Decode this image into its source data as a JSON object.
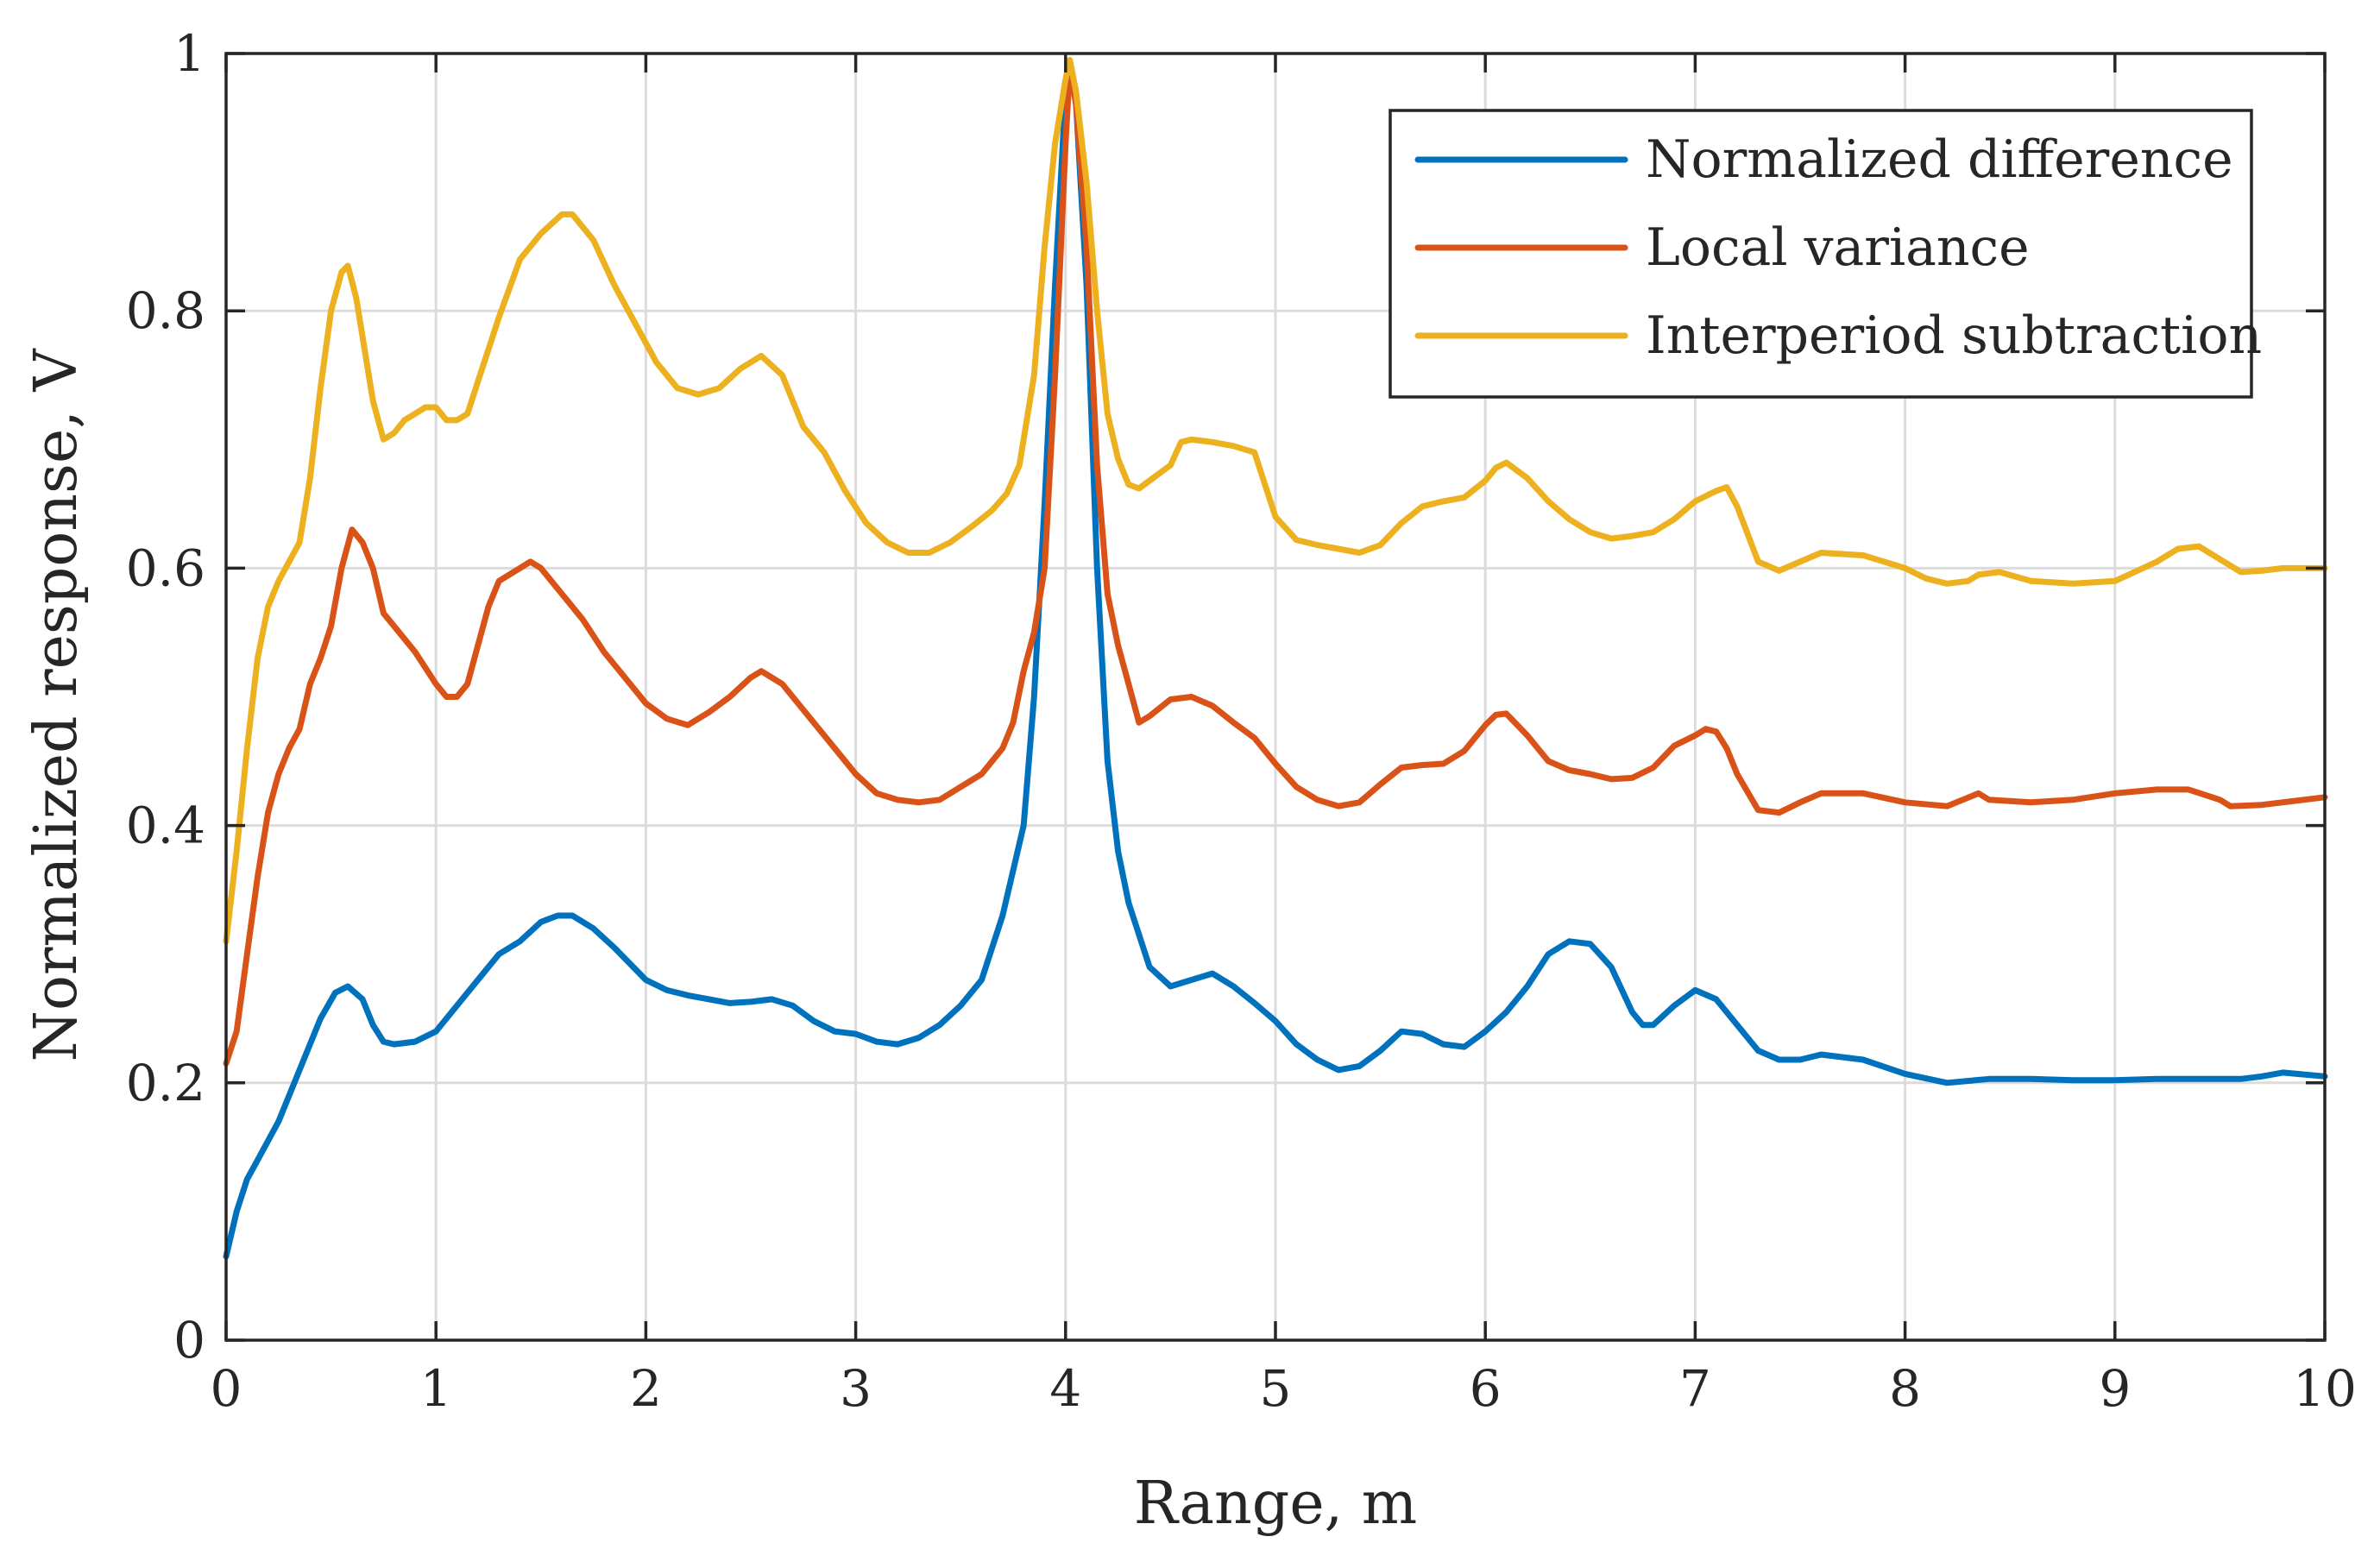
{
  "chart_data": {
    "type": "line",
    "title": "",
    "xlabel": "Range, m",
    "ylabel": "Normalized response, V",
    "xlim": [
      0,
      10
    ],
    "ylim": [
      0,
      1
    ],
    "xticks": [
      0,
      1,
      2,
      3,
      4,
      5,
      6,
      7,
      8,
      9,
      10
    ],
    "xtick_labels": [
      "0",
      "1",
      "2",
      "3",
      "4",
      "5",
      "6",
      "7",
      "8",
      "9",
      "10"
    ],
    "yticks": [
      0,
      0.2,
      0.4,
      0.6,
      0.8,
      1
    ],
    "ytick_labels": [
      "0",
      "0.2",
      "0.4",
      "0.6",
      "0.8",
      "1"
    ],
    "grid": true,
    "legend_position": "top-right",
    "series": [
      {
        "name": "Normalized difference",
        "color": "#0072BD",
        "x": [
          0,
          0.05,
          0.1,
          0.15,
          0.25,
          0.35,
          0.45,
          0.52,
          0.58,
          0.65,
          0.7,
          0.75,
          0.8,
          0.9,
          1.0,
          1.1,
          1.2,
          1.3,
          1.4,
          1.5,
          1.58,
          1.65,
          1.75,
          1.85,
          2.0,
          2.1,
          2.2,
          2.3,
          2.4,
          2.5,
          2.6,
          2.7,
          2.8,
          2.9,
          3.0,
          3.1,
          3.2,
          3.3,
          3.4,
          3.5,
          3.6,
          3.7,
          3.8,
          3.85,
          3.9,
          3.95,
          4.0,
          4.02,
          4.05,
          4.1,
          4.15,
          4.2,
          4.25,
          4.3,
          4.4,
          4.5,
          4.6,
          4.7,
          4.8,
          4.9,
          5.0,
          5.1,
          5.2,
          5.3,
          5.4,
          5.5,
          5.6,
          5.7,
          5.8,
          5.9,
          6.0,
          6.1,
          6.2,
          6.3,
          6.4,
          6.5,
          6.6,
          6.7,
          6.75,
          6.8,
          6.9,
          7.0,
          7.1,
          7.2,
          7.3,
          7.4,
          7.5,
          7.6,
          7.8,
          8.0,
          8.2,
          8.4,
          8.6,
          8.8,
          9.0,
          9.2,
          9.4,
          9.6,
          9.7,
          9.8,
          10.0
        ],
        "y": [
          0.065,
          0.1,
          0.125,
          0.14,
          0.17,
          0.21,
          0.25,
          0.27,
          0.275,
          0.265,
          0.245,
          0.232,
          0.23,
          0.232,
          0.24,
          0.26,
          0.28,
          0.3,
          0.31,
          0.325,
          0.33,
          0.33,
          0.32,
          0.305,
          0.28,
          0.272,
          0.268,
          0.265,
          0.262,
          0.263,
          0.265,
          0.26,
          0.248,
          0.24,
          0.238,
          0.232,
          0.23,
          0.235,
          0.245,
          0.26,
          0.28,
          0.33,
          0.4,
          0.5,
          0.65,
          0.82,
          0.97,
          0.99,
          0.96,
          0.82,
          0.6,
          0.45,
          0.38,
          0.34,
          0.29,
          0.275,
          0.28,
          0.285,
          0.275,
          0.262,
          0.248,
          0.23,
          0.218,
          0.21,
          0.213,
          0.225,
          0.24,
          0.238,
          0.23,
          0.228,
          0.24,
          0.255,
          0.275,
          0.3,
          0.31,
          0.308,
          0.29,
          0.255,
          0.245,
          0.245,
          0.26,
          0.272,
          0.265,
          0.245,
          0.225,
          0.218,
          0.218,
          0.222,
          0.218,
          0.207,
          0.2,
          0.203,
          0.203,
          0.202,
          0.202,
          0.203,
          0.203,
          0.203,
          0.205,
          0.208,
          0.205
        ]
      },
      {
        "name": "Local variance",
        "color": "#D95319",
        "x": [
          0,
          0.05,
          0.1,
          0.15,
          0.2,
          0.25,
          0.3,
          0.35,
          0.4,
          0.45,
          0.5,
          0.55,
          0.6,
          0.65,
          0.7,
          0.75,
          0.8,
          0.9,
          1.0,
          1.05,
          1.1,
          1.15,
          1.2,
          1.25,
          1.3,
          1.4,
          1.45,
          1.5,
          1.6,
          1.7,
          1.8,
          1.9,
          2.0,
          2.1,
          2.2,
          2.3,
          2.4,
          2.5,
          2.55,
          2.65,
          2.75,
          2.85,
          2.95,
          3.0,
          3.1,
          3.2,
          3.3,
          3.4,
          3.5,
          3.6,
          3.7,
          3.75,
          3.8,
          3.85,
          3.9,
          3.95,
          4.0,
          4.02,
          4.05,
          4.1,
          4.15,
          4.2,
          4.25,
          4.3,
          4.35,
          4.4,
          4.5,
          4.6,
          4.7,
          4.8,
          4.9,
          5.0,
          5.1,
          5.2,
          5.3,
          5.4,
          5.5,
          5.6,
          5.7,
          5.8,
          5.9,
          6.0,
          6.05,
          6.1,
          6.2,
          6.3,
          6.4,
          6.5,
          6.6,
          6.7,
          6.8,
          6.9,
          7.0,
          7.05,
          7.1,
          7.15,
          7.2,
          7.3,
          7.4,
          7.5,
          7.6,
          7.8,
          8.0,
          8.2,
          8.35,
          8.4,
          8.6,
          8.8,
          9.0,
          9.2,
          9.35,
          9.5,
          9.55,
          9.7,
          10.0
        ],
        "y": [
          0.215,
          0.24,
          0.3,
          0.36,
          0.41,
          0.44,
          0.46,
          0.475,
          0.51,
          0.53,
          0.555,
          0.6,
          0.63,
          0.62,
          0.6,
          0.565,
          0.555,
          0.535,
          0.51,
          0.5,
          0.5,
          0.51,
          0.54,
          0.57,
          0.59,
          0.6,
          0.605,
          0.6,
          0.58,
          0.56,
          0.535,
          0.515,
          0.495,
          0.483,
          0.478,
          0.488,
          0.5,
          0.515,
          0.52,
          0.51,
          0.49,
          0.47,
          0.45,
          0.44,
          0.425,
          0.42,
          0.418,
          0.42,
          0.43,
          0.44,
          0.46,
          0.48,
          0.52,
          0.55,
          0.6,
          0.75,
          0.93,
          0.99,
          0.96,
          0.85,
          0.68,
          0.58,
          0.54,
          0.51,
          0.48,
          0.485,
          0.498,
          0.5,
          0.493,
          0.48,
          0.468,
          0.448,
          0.43,
          0.42,
          0.415,
          0.418,
          0.432,
          0.445,
          0.447,
          0.448,
          0.458,
          0.478,
          0.486,
          0.487,
          0.47,
          0.45,
          0.443,
          0.44,
          0.436,
          0.437,
          0.445,
          0.462,
          0.47,
          0.475,
          0.473,
          0.46,
          0.44,
          0.412,
          0.41,
          0.418,
          0.425,
          0.425,
          0.418,
          0.415,
          0.425,
          0.42,
          0.418,
          0.42,
          0.425,
          0.428,
          0.428,
          0.42,
          0.415,
          0.416,
          0.422
        ]
      },
      {
        "name": "Interperiod subtraction",
        "color": "#EDB120",
        "x": [
          0,
          0.05,
          0.1,
          0.15,
          0.2,
          0.25,
          0.3,
          0.35,
          0.4,
          0.45,
          0.5,
          0.55,
          0.58,
          0.62,
          0.66,
          0.7,
          0.75,
          0.8,
          0.85,
          0.9,
          0.95,
          1.0,
          1.05,
          1.1,
          1.15,
          1.2,
          1.3,
          1.4,
          1.5,
          1.6,
          1.65,
          1.75,
          1.85,
          1.95,
          2.05,
          2.15,
          2.25,
          2.35,
          2.45,
          2.55,
          2.65,
          2.75,
          2.85,
          2.95,
          3.05,
          3.15,
          3.25,
          3.35,
          3.45,
          3.55,
          3.65,
          3.72,
          3.78,
          3.85,
          3.9,
          3.95,
          4.0,
          4.02,
          4.05,
          4.1,
          4.15,
          4.2,
          4.25,
          4.3,
          4.35,
          4.4,
          4.5,
          4.55,
          4.6,
          4.7,
          4.8,
          4.9,
          5.0,
          5.1,
          5.2,
          5.3,
          5.4,
          5.5,
          5.6,
          5.7,
          5.8,
          5.9,
          6.0,
          6.05,
          6.1,
          6.2,
          6.3,
          6.4,
          6.5,
          6.6,
          6.7,
          6.8,
          6.9,
          7.0,
          7.1,
          7.15,
          7.2,
          7.3,
          7.4,
          7.5,
          7.6,
          7.8,
          8.0,
          8.1,
          8.2,
          8.3,
          8.35,
          8.45,
          8.6,
          8.8,
          9.0,
          9.2,
          9.3,
          9.4,
          9.5,
          9.6,
          9.7,
          9.8,
          10.0
        ],
        "y": [
          0.31,
          0.38,
          0.46,
          0.53,
          0.57,
          0.59,
          0.605,
          0.62,
          0.67,
          0.74,
          0.8,
          0.83,
          0.835,
          0.81,
          0.77,
          0.73,
          0.7,
          0.705,
          0.715,
          0.72,
          0.725,
          0.725,
          0.715,
          0.715,
          0.72,
          0.745,
          0.795,
          0.84,
          0.86,
          0.875,
          0.875,
          0.855,
          0.82,
          0.79,
          0.76,
          0.74,
          0.735,
          0.74,
          0.755,
          0.765,
          0.75,
          0.71,
          0.69,
          0.66,
          0.635,
          0.62,
          0.612,
          0.612,
          0.62,
          0.632,
          0.645,
          0.658,
          0.68,
          0.75,
          0.85,
          0.93,
          0.98,
          0.995,
          0.97,
          0.9,
          0.8,
          0.72,
          0.685,
          0.665,
          0.662,
          0.668,
          0.68,
          0.698,
          0.7,
          0.698,
          0.695,
          0.69,
          0.64,
          0.622,
          0.618,
          0.615,
          0.612,
          0.618,
          0.635,
          0.648,
          0.652,
          0.655,
          0.668,
          0.678,
          0.682,
          0.67,
          0.652,
          0.638,
          0.628,
          0.623,
          0.625,
          0.628,
          0.638,
          0.652,
          0.66,
          0.663,
          0.648,
          0.605,
          0.598,
          0.605,
          0.612,
          0.61,
          0.6,
          0.592,
          0.588,
          0.59,
          0.595,
          0.597,
          0.59,
          0.588,
          0.59,
          0.605,
          0.615,
          0.617,
          0.607,
          0.597,
          0.598,
          0.6,
          0.6
        ]
      }
    ]
  }
}
